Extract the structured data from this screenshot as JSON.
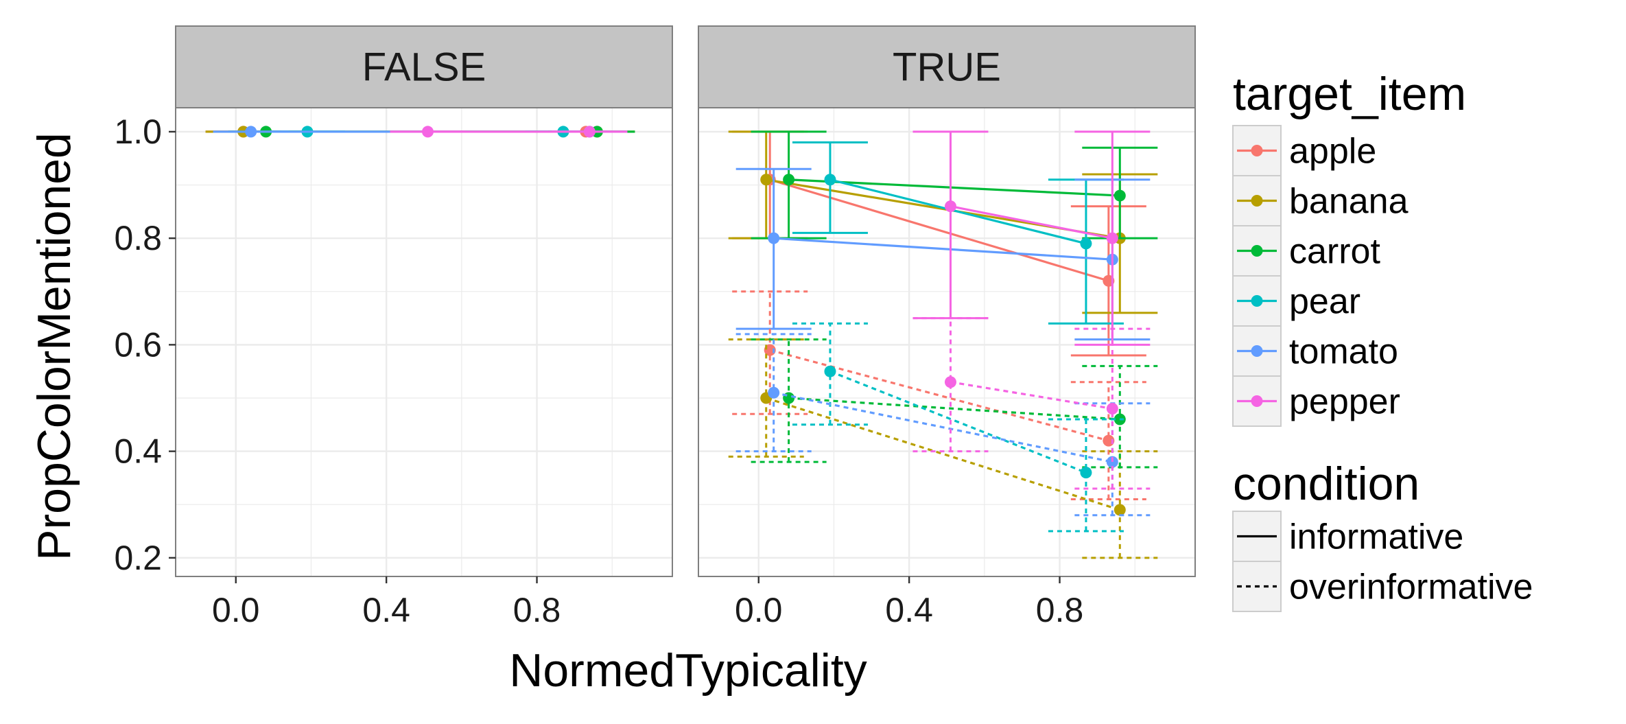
{
  "chart_data": {
    "type": "line",
    "xlabel": "NormedTypicality",
    "ylabel": "PropColorMentioned",
    "xlim": [
      -0.16,
      1.16
    ],
    "ylim": [
      0.165,
      1.045
    ],
    "x_ticks": [
      0.0,
      0.4,
      0.8
    ],
    "x_tick_labels": [
      "0.0",
      "0.4",
      "0.8"
    ],
    "y_ticks": [
      0.2,
      0.4,
      0.6,
      0.8,
      1.0
    ],
    "y_tick_labels": [
      "0.2",
      "0.4",
      "0.6",
      "0.8",
      "1.0"
    ],
    "grid": true,
    "panel_background": "#ffffff",
    "grid_color": "#ebebeb",
    "strip_color": "#c4c4c4",
    "facets": [
      {
        "label": "FALSE"
      },
      {
        "label": "TRUE"
      }
    ],
    "legends": [
      {
        "title": "target_item",
        "placement": "right",
        "entries": [
          {
            "label": "apple",
            "color": "#F8766D"
          },
          {
            "label": "banana",
            "color": "#B79F00"
          },
          {
            "label": "carrot",
            "color": "#00BA38"
          },
          {
            "label": "pear",
            "color": "#00BFC4"
          },
          {
            "label": "tomato",
            "color": "#619CFF"
          },
          {
            "label": "pepper",
            "color": "#F564E3"
          }
        ]
      },
      {
        "title": "condition",
        "placement": "right",
        "entries": [
          {
            "label": "informative",
            "linetype": "solid"
          },
          {
            "label": "overinformative",
            "linetype": "dashed"
          }
        ]
      }
    ],
    "series": [
      {
        "facet": "FALSE",
        "item": "apple",
        "condition": "informative",
        "x": [
          0.02,
          0.93
        ],
        "y": [
          1.0,
          1.0
        ],
        "ymin": [
          1.0,
          1.0
        ],
        "ymax": [
          1.0,
          1.0
        ]
      },
      {
        "facet": "FALSE",
        "item": "banana",
        "condition": "informative",
        "x": [
          0.02,
          0.96
        ],
        "y": [
          1.0,
          1.0
        ],
        "ymin": [
          1.0,
          1.0
        ],
        "ymax": [
          1.0,
          1.0
        ]
      },
      {
        "facet": "FALSE",
        "item": "carrot",
        "condition": "informative",
        "x": [
          0.08,
          0.96
        ],
        "y": [
          1.0,
          1.0
        ],
        "ymin": [
          1.0,
          1.0
        ],
        "ymax": [
          1.0,
          1.0
        ]
      },
      {
        "facet": "FALSE",
        "item": "pear",
        "condition": "informative",
        "x": [
          0.19,
          0.87
        ],
        "y": [
          1.0,
          1.0
        ],
        "ymin": [
          1.0,
          1.0
        ],
        "ymax": [
          1.0,
          1.0
        ]
      },
      {
        "facet": "FALSE",
        "item": "tomato",
        "condition": "informative",
        "x": [
          0.04,
          0.94
        ],
        "y": [
          1.0,
          1.0
        ],
        "ymin": [
          1.0,
          1.0
        ],
        "ymax": [
          1.0,
          1.0
        ]
      },
      {
        "facet": "FALSE",
        "item": "pepper",
        "condition": "informative",
        "x": [
          0.51,
          0.94
        ],
        "y": [
          1.0,
          1.0
        ],
        "ymin": [
          1.0,
          1.0
        ],
        "ymax": [
          1.0,
          1.0
        ]
      },
      {
        "facet": "TRUE",
        "item": "apple",
        "condition": "informative",
        "x": [
          0.03,
          0.93
        ],
        "y": [
          0.91,
          0.72
        ],
        "ymin": [
          0.8,
          0.58
        ],
        "ymax": [
          1.0,
          0.86
        ]
      },
      {
        "facet": "TRUE",
        "item": "banana",
        "condition": "informative",
        "x": [
          0.02,
          0.96
        ],
        "y": [
          0.91,
          0.8
        ],
        "ymin": [
          0.8,
          0.66
        ],
        "ymax": [
          1.0,
          0.92
        ]
      },
      {
        "facet": "TRUE",
        "item": "carrot",
        "condition": "informative",
        "x": [
          0.08,
          0.96
        ],
        "y": [
          0.91,
          0.88
        ],
        "ymin": [
          0.8,
          0.8
        ],
        "ymax": [
          1.0,
          0.97
        ]
      },
      {
        "facet": "TRUE",
        "item": "pear",
        "condition": "informative",
        "x": [
          0.19,
          0.87
        ],
        "y": [
          0.91,
          0.79
        ],
        "ymin": [
          0.81,
          0.64
        ],
        "ymax": [
          0.98,
          0.91
        ]
      },
      {
        "facet": "TRUE",
        "item": "tomato",
        "condition": "informative",
        "x": [
          0.04,
          0.94
        ],
        "y": [
          0.8,
          0.76
        ],
        "ymin": [
          0.63,
          0.61
        ],
        "ymax": [
          0.93,
          0.91
        ]
      },
      {
        "facet": "TRUE",
        "item": "pepper",
        "condition": "informative",
        "x": [
          0.51,
          0.94
        ],
        "y": [
          0.86,
          0.8
        ],
        "ymin": [
          0.65,
          0.6
        ],
        "ymax": [
          1.0,
          1.0
        ]
      },
      {
        "facet": "TRUE",
        "item": "apple",
        "condition": "overinformative",
        "x": [
          0.03,
          0.93
        ],
        "y": [
          0.59,
          0.42
        ],
        "ymin": [
          0.47,
          0.31
        ],
        "ymax": [
          0.7,
          0.53
        ]
      },
      {
        "facet": "TRUE",
        "item": "banana",
        "condition": "overinformative",
        "x": [
          0.02,
          0.96
        ],
        "y": [
          0.5,
          0.29
        ],
        "ymin": [
          0.39,
          0.2
        ],
        "ymax": [
          0.61,
          0.4
        ]
      },
      {
        "facet": "TRUE",
        "item": "carrot",
        "condition": "overinformative",
        "x": [
          0.08,
          0.96
        ],
        "y": [
          0.5,
          0.46
        ],
        "ymin": [
          0.38,
          0.37
        ],
        "ymax": [
          0.61,
          0.56
        ]
      },
      {
        "facet": "TRUE",
        "item": "pear",
        "condition": "overinformative",
        "x": [
          0.19,
          0.87
        ],
        "y": [
          0.55,
          0.36
        ],
        "ymin": [
          0.45,
          0.25
        ],
        "ymax": [
          0.64,
          0.46
        ]
      },
      {
        "facet": "TRUE",
        "item": "tomato",
        "condition": "overinformative",
        "x": [
          0.04,
          0.94
        ],
        "y": [
          0.51,
          0.38
        ],
        "ymin": [
          0.4,
          0.28
        ],
        "ymax": [
          0.62,
          0.49
        ]
      },
      {
        "facet": "TRUE",
        "item": "pepper",
        "condition": "overinformative",
        "x": [
          0.51,
          0.94
        ],
        "y": [
          0.53,
          0.48
        ],
        "ymin": [
          0.4,
          0.33
        ],
        "ymax": [
          0.65,
          0.63
        ]
      }
    ]
  }
}
